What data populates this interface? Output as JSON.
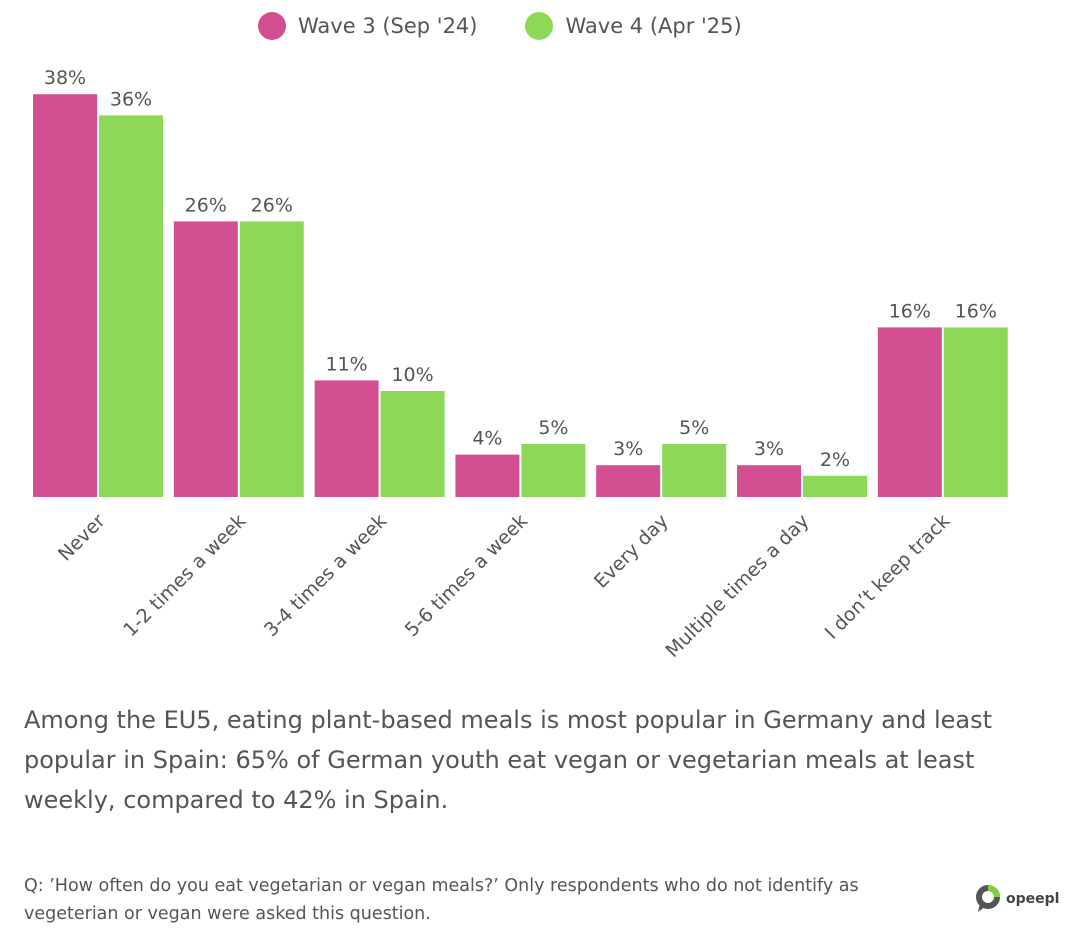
{
  "chart_data": {
    "type": "bar",
    "categories": [
      "Never",
      "1-2 times a week",
      "3-4 times a week",
      "5-6 times a week",
      "Every day",
      "Multiple times a day",
      "I don’t keep track"
    ],
    "series": [
      {
        "name": "Wave 3 (Sep '24)",
        "color": "#d44f91",
        "values": [
          38,
          26,
          11,
          4,
          3,
          3,
          16
        ]
      },
      {
        "name": "Wave 4 (Apr '25)",
        "color": "#8ed857",
        "values": [
          36,
          26,
          10,
          5,
          5,
          2,
          16
        ]
      }
    ],
    "value_suffix": "%",
    "ylim": [
      0,
      40
    ],
    "grid": false,
    "legend": "top-center"
  },
  "caption": "Among the EU5, eating plant-based meals is most popular in Germany and least popular in Spain: 65% of German youth eat vegan or vegetarian meals at least weekly, compared to 42% in Spain.",
  "note": "Q: ’How often do you eat vegetarian or vegan meals?’ Only respondents who do not identify as vegeterian or vegan were asked this question.",
  "logo": {
    "text": "opeepl"
  }
}
